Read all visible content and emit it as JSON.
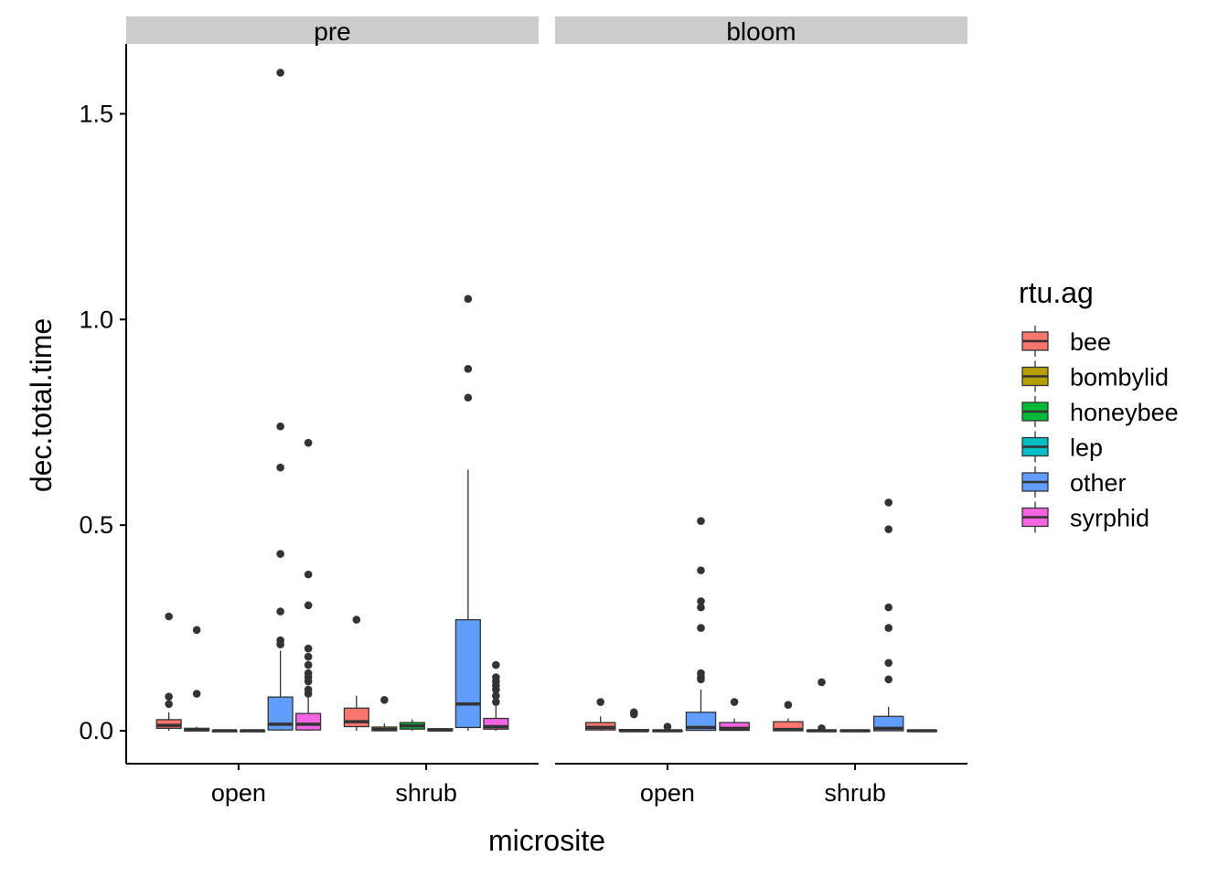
{
  "chart_data": {
    "type": "boxplot",
    "xlabel": "microsite",
    "ylabel": "dec.total.time",
    "ylim": [
      -0.08,
      1.67
    ],
    "yticks": [
      0.0,
      0.5,
      1.0,
      1.5
    ],
    "ytick_labels": [
      "0.0",
      "0.5",
      "1.0",
      "1.5"
    ],
    "grid": false,
    "legend": {
      "title": "rtu.ag",
      "position": "right",
      "items": [
        {
          "name": "bee",
          "color": "#F8766D"
        },
        {
          "name": "bombylid",
          "color": "#B79F00"
        },
        {
          "name": "honeybee",
          "color": "#00BA38"
        },
        {
          "name": "lep",
          "color": "#00BFC4"
        },
        {
          "name": "other",
          "color": "#619CFF"
        },
        {
          "name": "syrphid",
          "color": "#F564E3"
        }
      ]
    },
    "categories": [
      "open",
      "shrub"
    ],
    "panels": [
      {
        "facet": "pre",
        "groups": [
          {
            "category": "open",
            "boxes": [
              {
                "series": "bee",
                "q1": 0.006,
                "median": 0.013,
                "q3": 0.027,
                "whisker_low": 0.0,
                "whisker_high": 0.045,
                "outliers": [
                  0.065,
                  0.083,
                  0.278
                ]
              },
              {
                "series": "bombylid",
                "q1": 0.0,
                "median": 0.002,
                "q3": 0.006,
                "whisker_low": 0.0,
                "whisker_high": 0.01,
                "outliers": [
                  0.09,
                  0.245
                ]
              },
              {
                "series": "honeybee",
                "q1": 0.0,
                "median": 0.0,
                "q3": 0.0,
                "whisker_low": 0.0,
                "whisker_high": 0.0,
                "outliers": []
              },
              {
                "series": "lep",
                "q1": 0.0,
                "median": 0.0,
                "q3": 0.0,
                "whisker_low": 0.0,
                "whisker_high": 0.0,
                "outliers": []
              },
              {
                "series": "other",
                "q1": 0.002,
                "median": 0.016,
                "q3": 0.082,
                "whisker_low": 0.0,
                "whisker_high": 0.195,
                "outliers": [
                  0.21,
                  0.22,
                  0.29,
                  0.43,
                  0.64,
                  0.74,
                  1.6
                ]
              },
              {
                "series": "syrphid",
                "q1": 0.002,
                "median": 0.016,
                "q3": 0.042,
                "whisker_low": 0.0,
                "whisker_high": 0.08,
                "outliers": [
                  0.09,
                  0.1,
                  0.12,
                  0.13,
                  0.14,
                  0.16,
                  0.18,
                  0.2,
                  0.305,
                  0.38,
                  0.7
                ]
              }
            ]
          },
          {
            "category": "shrub",
            "boxes": [
              {
                "series": "bee",
                "q1": 0.01,
                "median": 0.022,
                "q3": 0.055,
                "whisker_low": 0.0,
                "whisker_high": 0.085,
                "outliers": [
                  0.27
                ]
              },
              {
                "series": "bombylid",
                "q1": 0.0,
                "median": 0.003,
                "q3": 0.009,
                "whisker_low": 0.0,
                "whisker_high": 0.018,
                "outliers": [
                  0.075
                ]
              },
              {
                "series": "honeybee",
                "q1": 0.004,
                "median": 0.012,
                "q3": 0.02,
                "whisker_low": 0.0,
                "whisker_high": 0.028,
                "outliers": []
              },
              {
                "series": "lep",
                "q1": 0.0,
                "median": 0.002,
                "q3": 0.005,
                "whisker_low": 0.0,
                "whisker_high": 0.006,
                "outliers": []
              },
              {
                "series": "other",
                "q1": 0.008,
                "median": 0.065,
                "q3": 0.27,
                "whisker_low": 0.0,
                "whisker_high": 0.635,
                "outliers": [
                  0.81,
                  0.88,
                  1.05
                ]
              },
              {
                "series": "syrphid",
                "q1": 0.004,
                "median": 0.01,
                "q3": 0.03,
                "whisker_low": 0.0,
                "whisker_high": 0.06,
                "outliers": [
                  0.07,
                  0.085,
                  0.1,
                  0.11,
                  0.12,
                  0.13,
                  0.16
                ]
              }
            ]
          }
        ]
      },
      {
        "facet": "bloom",
        "groups": [
          {
            "category": "open",
            "boxes": [
              {
                "series": "bee",
                "q1": 0.002,
                "median": 0.008,
                "q3": 0.02,
                "whisker_low": 0.0,
                "whisker_high": 0.035,
                "outliers": [
                  0.07
                ]
              },
              {
                "series": "bombylid",
                "q1": 0.0,
                "median": 0.0,
                "q3": 0.003,
                "whisker_low": 0.0,
                "whisker_high": 0.005,
                "outliers": [
                  0.04,
                  0.045
                ]
              },
              {
                "series": "honeybee",
                "q1": 0.0,
                "median": 0.0,
                "q3": 0.001,
                "whisker_low": 0.0,
                "whisker_high": 0.002,
                "outliers": [
                  0.01
                ]
              },
              {
                "series": "other",
                "q1": 0.001,
                "median": 0.008,
                "q3": 0.045,
                "whisker_low": 0.0,
                "whisker_high": 0.1,
                "outliers": [
                  0.125,
                  0.13,
                  0.14,
                  0.25,
                  0.3,
                  0.315,
                  0.39,
                  0.51
                ]
              },
              {
                "series": "syrphid",
                "q1": 0.001,
                "median": 0.006,
                "q3": 0.02,
                "whisker_low": 0.0,
                "whisker_high": 0.03,
                "outliers": [
                  0.07
                ]
              }
            ]
          },
          {
            "category": "shrub",
            "boxes": [
              {
                "series": "bee",
                "q1": 0.0,
                "median": 0.003,
                "q3": 0.022,
                "whisker_low": 0.0,
                "whisker_high": 0.03,
                "outliers": [
                  0.063
                ]
              },
              {
                "series": "bombylid",
                "q1": 0.0,
                "median": 0.0,
                "q3": 0.001,
                "whisker_low": 0.0,
                "whisker_high": 0.003,
                "outliers": [
                  0.006,
                  0.118
                ]
              },
              {
                "series": "honeybee",
                "q1": 0.0,
                "median": 0.0,
                "q3": 0.001,
                "whisker_low": 0.0,
                "whisker_high": 0.003,
                "outliers": []
              },
              {
                "series": "other",
                "q1": 0.0,
                "median": 0.006,
                "q3": 0.035,
                "whisker_low": 0.0,
                "whisker_high": 0.058,
                "outliers": [
                  0.125,
                  0.165,
                  0.25,
                  0.3,
                  0.49,
                  0.555
                ]
              },
              {
                "series": "syrphid",
                "q1": 0.0,
                "median": 0.0,
                "q3": 0.001,
                "whisker_low": 0.0,
                "whisker_high": 0.002,
                "outliers": []
              }
            ]
          }
        ]
      }
    ]
  }
}
